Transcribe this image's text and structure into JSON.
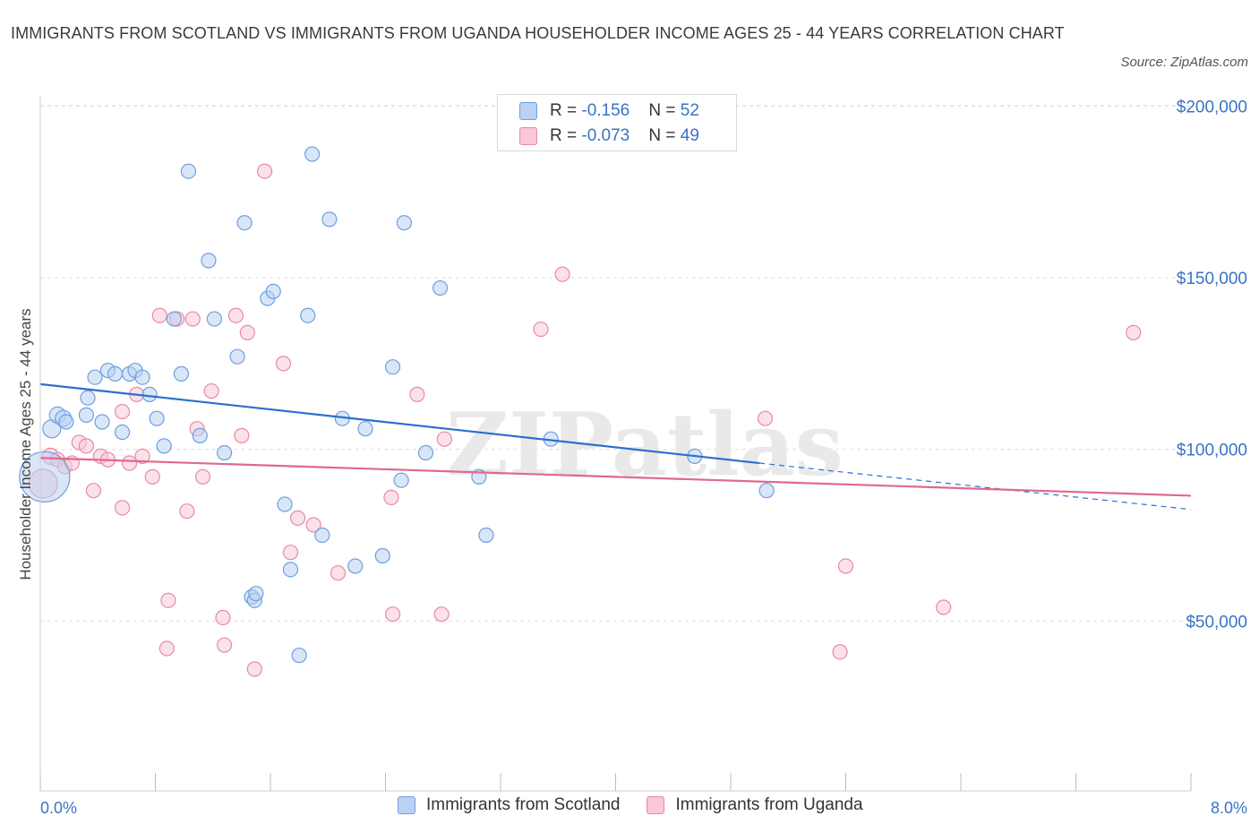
{
  "title": "IMMIGRANTS FROM SCOTLAND VS IMMIGRANTS FROM UGANDA HOUSEHOLDER INCOME AGES 25 - 44 YEARS CORRELATION CHART",
  "source": "Source: ZipAtlas.com",
  "watermark": "ZIPatlas",
  "colors": {
    "scotland_fill": "#b9d2f3",
    "scotland_stroke": "#6f9ee0",
    "scotland_line": "#2a6fd0",
    "uganda_fill": "#f8c8d6",
    "uganda_stroke": "#e88aa8",
    "uganda_line": "#e0698f",
    "grid": "#dcdcdc",
    "axis_text": "#3a73c5"
  },
  "legend": {
    "rows": [
      {
        "r_label": "R = ",
        "r_value": "-0.156",
        "n_label": "N = ",
        "n_value": "52"
      },
      {
        "r_label": "R = ",
        "r_value": "-0.073",
        "n_label": "N = ",
        "n_value": "49"
      }
    ]
  },
  "chart_data": {
    "type": "scatter",
    "title": "IMMIGRANTS FROM SCOTLAND VS IMMIGRANTS FROM UGANDA HOUSEHOLDER INCOME AGES 25 - 44 YEARS CORRELATION CHART",
    "xlabel": "",
    "ylabel": "Householder Income Ages 25 - 44 years",
    "xlim": [
      0,
      8
    ],
    "ylim": [
      5000,
      210000
    ],
    "x_tick_labels": [
      "0.0%",
      "8.0%"
    ],
    "y_ticks": [
      50000,
      100000,
      150000,
      200000
    ],
    "y_tick_labels": [
      "$50,000",
      "$100,000",
      "$150,000",
      "$200,000"
    ],
    "grid": true,
    "legend_position": "top-center",
    "series": [
      {
        "name": "Immigrants from Scotland",
        "trend": {
          "x": [
            0,
            5.0
          ],
          "y": [
            119000,
            96000
          ],
          "extended_to": [
            8.0,
            82500
          ]
        },
        "points": [
          [
            0.03,
            92000,
            28
          ],
          [
            0.08,
            106000,
            10
          ],
          [
            0.12,
            110000,
            9
          ],
          [
            0.16,
            109000,
            9
          ],
          [
            0.18,
            108000,
            8
          ],
          [
            0.32,
            110000,
            8
          ],
          [
            0.33,
            115000,
            8
          ],
          [
            0.38,
            121000,
            8
          ],
          [
            0.43,
            108000,
            8
          ],
          [
            0.47,
            123000,
            8
          ],
          [
            0.52,
            122000,
            8
          ],
          [
            0.57,
            105000,
            8
          ],
          [
            0.62,
            122000,
            8
          ],
          [
            0.66,
            123000,
            8
          ],
          [
            0.71,
            121000,
            8
          ],
          [
            0.76,
            116000,
            8
          ],
          [
            0.81,
            109000,
            8
          ],
          [
            0.86,
            101000,
            8
          ],
          [
            0.93,
            138000,
            8
          ],
          [
            0.98,
            122000,
            8
          ],
          [
            1.03,
            181000,
            8
          ],
          [
            1.11,
            104000,
            8
          ],
          [
            1.17,
            155000,
            8
          ],
          [
            1.21,
            138000,
            8
          ],
          [
            1.28,
            99000,
            8
          ],
          [
            1.37,
            127000,
            8
          ],
          [
            1.42,
            166000,
            8
          ],
          [
            1.47,
            57000,
            8
          ],
          [
            1.49,
            56000,
            8
          ],
          [
            1.5,
            58000,
            8
          ],
          [
            1.58,
            144000,
            8
          ],
          [
            1.62,
            146000,
            8
          ],
          [
            1.7,
            84000,
            8
          ],
          [
            1.74,
            65000,
            8
          ],
          [
            1.8,
            40000,
            8
          ],
          [
            1.86,
            139000,
            8
          ],
          [
            1.89,
            186000,
            8
          ],
          [
            1.96,
            75000,
            8
          ],
          [
            2.01,
            167000,
            8
          ],
          [
            2.1,
            109000,
            8
          ],
          [
            2.19,
            66000,
            8
          ],
          [
            2.26,
            106000,
            8
          ],
          [
            2.38,
            69000,
            8
          ],
          [
            2.45,
            124000,
            8
          ],
          [
            2.51,
            91000,
            8
          ],
          [
            2.53,
            166000,
            8
          ],
          [
            2.68,
            99000,
            8
          ],
          [
            2.78,
            147000,
            8
          ],
          [
            3.05,
            92000,
            8
          ],
          [
            3.1,
            75000,
            8
          ],
          [
            3.55,
            103000,
            8
          ],
          [
            4.55,
            98000,
            8
          ],
          [
            5.05,
            88000,
            8
          ]
        ]
      },
      {
        "name": "Immigrants from Uganda",
        "trend": {
          "x": [
            0,
            8.0
          ],
          "y": [
            97500,
            86500
          ]
        },
        "points": [
          [
            0.02,
            90000,
            16
          ],
          [
            0.07,
            98000,
            9
          ],
          [
            0.12,
            97000,
            8
          ],
          [
            0.17,
            95000,
            8
          ],
          [
            0.22,
            96000,
            8
          ],
          [
            0.27,
            102000,
            8
          ],
          [
            0.32,
            101000,
            8
          ],
          [
            0.37,
            88000,
            8
          ],
          [
            0.42,
            98000,
            8
          ],
          [
            0.47,
            97000,
            8
          ],
          [
            0.57,
            111000,
            8
          ],
          [
            0.57,
            83000,
            8
          ],
          [
            0.62,
            96000,
            8
          ],
          [
            0.67,
            116000,
            8
          ],
          [
            0.71,
            98000,
            8
          ],
          [
            0.78,
            92000,
            8
          ],
          [
            0.83,
            139000,
            8
          ],
          [
            0.88,
            42000,
            8
          ],
          [
            0.89,
            56000,
            8
          ],
          [
            0.95,
            138000,
            8
          ],
          [
            1.02,
            82000,
            8
          ],
          [
            1.06,
            138000,
            8
          ],
          [
            1.09,
            106000,
            8
          ],
          [
            1.13,
            92000,
            8
          ],
          [
            1.19,
            117000,
            8
          ],
          [
            1.27,
            51000,
            8
          ],
          [
            1.28,
            43000,
            8
          ],
          [
            1.36,
            139000,
            8
          ],
          [
            1.4,
            104000,
            8
          ],
          [
            1.44,
            134000,
            8
          ],
          [
            1.49,
            36000,
            8
          ],
          [
            1.56,
            181000,
            8
          ],
          [
            1.69,
            125000,
            8
          ],
          [
            1.74,
            70000,
            8
          ],
          [
            1.79,
            80000,
            8
          ],
          [
            1.9,
            78000,
            8
          ],
          [
            2.07,
            64000,
            8
          ],
          [
            2.44,
            86000,
            8
          ],
          [
            2.45,
            52000,
            8
          ],
          [
            2.62,
            116000,
            8
          ],
          [
            2.81,
            103000,
            8
          ],
          [
            2.79,
            52000,
            8
          ],
          [
            3.48,
            135000,
            8
          ],
          [
            3.63,
            151000,
            8
          ],
          [
            5.04,
            109000,
            8
          ],
          [
            5.56,
            41000,
            8
          ],
          [
            5.6,
            66000,
            8
          ],
          [
            6.28,
            54000,
            8
          ],
          [
            7.6,
            134000,
            8
          ]
        ]
      }
    ]
  }
}
